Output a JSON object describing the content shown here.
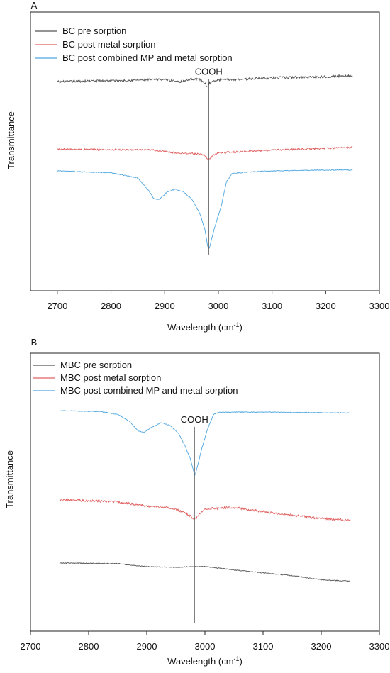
{
  "chart_data": [
    {
      "type": "line",
      "panel_label": "A",
      "xlabel": "Wavelength (cm",
      "xlabel_sup": "-1",
      "xlabel_end": ")",
      "ylabel": "Transmittance",
      "xlim": [
        2650,
        3300
      ],
      "xticks": [
        2700,
        2800,
        2900,
        3000,
        3100,
        3200,
        3300
      ],
      "ylim": [
        0,
        1
      ],
      "legend_position": "top-left",
      "annotation": {
        "text": "COOH",
        "x": 2982
      },
      "marker_line": {
        "x": 2982,
        "y_top": 0.76,
        "y_bottom": 0.13
      },
      "series": [
        {
          "name": "BC pre sorption",
          "color": "#555555",
          "noise": 0.004,
          "points": [
            [
              2700,
              0.75
            ],
            [
              2800,
              0.754
            ],
            [
              2900,
              0.758
            ],
            [
              2930,
              0.75
            ],
            [
              2950,
              0.76
            ],
            [
              2965,
              0.758
            ],
            [
              2975,
              0.745
            ],
            [
              2980,
              0.73
            ],
            [
              2983,
              0.745
            ],
            [
              2990,
              0.75
            ],
            [
              3000,
              0.756
            ],
            [
              3100,
              0.764
            ],
            [
              3200,
              0.768
            ],
            [
              3250,
              0.772
            ]
          ]
        },
        {
          "name": "BC post metal sorption",
          "color": "#e06060",
          "noise": 0.003,
          "points": [
            [
              2700,
              0.508
            ],
            [
              2800,
              0.506
            ],
            [
              2880,
              0.505
            ],
            [
              2920,
              0.495
            ],
            [
              2960,
              0.492
            ],
            [
              2975,
              0.485
            ],
            [
              2982,
              0.47
            ],
            [
              2990,
              0.485
            ],
            [
              3000,
              0.495
            ],
            [
              3100,
              0.505
            ],
            [
              3200,
              0.511
            ],
            [
              3250,
              0.515
            ]
          ]
        },
        {
          "name": "BC post combined MP and metal sorption",
          "color": "#4da6e0",
          "noise": 0.0015,
          "points": [
            [
              2700,
              0.43
            ],
            [
              2800,
              0.423
            ],
            [
              2850,
              0.405
            ],
            [
              2870,
              0.36
            ],
            [
              2880,
              0.33
            ],
            [
              2890,
              0.328
            ],
            [
              2905,
              0.355
            ],
            [
              2920,
              0.365
            ],
            [
              2935,
              0.355
            ],
            [
              2950,
              0.33
            ],
            [
              2965,
              0.28
            ],
            [
              2975,
              0.22
            ],
            [
              2980,
              0.16
            ],
            [
              2983,
              0.15
            ],
            [
              2988,
              0.19
            ],
            [
              2995,
              0.24
            ],
            [
              3005,
              0.3
            ],
            [
              3015,
              0.39
            ],
            [
              3025,
              0.42
            ],
            [
              3050,
              0.425
            ],
            [
              3100,
              0.43
            ],
            [
              3200,
              0.433
            ],
            [
              3250,
              0.433
            ]
          ]
        }
      ]
    },
    {
      "type": "line",
      "panel_label": "B",
      "xlabel": "Wavelength (cm",
      "xlabel_sup": "-1",
      "xlabel_end": ")",
      "ylabel": "Transmittance",
      "xlim": [
        2700,
        3300
      ],
      "xticks": [
        2700,
        2800,
        2900,
        3000,
        3100,
        3200,
        3300
      ],
      "ylim": [
        0,
        1
      ],
      "legend_position": "top-left",
      "annotation": {
        "text": "COOH",
        "x": 2982
      },
      "marker_line": {
        "x": 2982,
        "y_top": 0.735,
        "y_bottom": 0.03
      },
      "series": [
        {
          "name": "MBC pre sorption",
          "color": "#555555",
          "noise": 0.0015,
          "points": [
            [
              2750,
              0.245
            ],
            [
              2850,
              0.243
            ],
            [
              2900,
              0.232
            ],
            [
              2950,
              0.23
            ],
            [
              3000,
              0.233
            ],
            [
              3050,
              0.22
            ],
            [
              3100,
              0.21
            ],
            [
              3150,
              0.2
            ],
            [
              3200,
              0.185
            ],
            [
              3250,
              0.18
            ]
          ]
        },
        {
          "name": "MBC post metal sorption",
          "color": "#e06060",
          "noise": 0.004,
          "points": [
            [
              2750,
              0.473
            ],
            [
              2850,
              0.465
            ],
            [
              2900,
              0.45
            ],
            [
              2925,
              0.447
            ],
            [
              2950,
              0.44
            ],
            [
              2975,
              0.415
            ],
            [
              2982,
              0.4
            ],
            [
              2990,
              0.42
            ],
            [
              3000,
              0.44
            ],
            [
              3050,
              0.445
            ],
            [
              3100,
              0.43
            ],
            [
              3200,
              0.405
            ],
            [
              3250,
              0.398
            ]
          ]
        },
        {
          "name": "MBC post combined MP and metal sorption",
          "color": "#4da6e0",
          "noise": 0.0012,
          "points": [
            [
              2750,
              0.793
            ],
            [
              2820,
              0.79
            ],
            [
              2850,
              0.78
            ],
            [
              2870,
              0.755
            ],
            [
              2885,
              0.72
            ],
            [
              2895,
              0.715
            ],
            [
              2910,
              0.735
            ],
            [
              2925,
              0.75
            ],
            [
              2940,
              0.74
            ],
            [
              2955,
              0.71
            ],
            [
              2965,
              0.67
            ],
            [
              2975,
              0.62
            ],
            [
              2980,
              0.58
            ],
            [
              2983,
              0.56
            ],
            [
              2988,
              0.6
            ],
            [
              2995,
              0.66
            ],
            [
              3005,
              0.73
            ],
            [
              3015,
              0.78
            ],
            [
              3025,
              0.788
            ],
            [
              3100,
              0.788
            ],
            [
              3200,
              0.786
            ],
            [
              3250,
              0.785
            ]
          ]
        }
      ]
    }
  ]
}
